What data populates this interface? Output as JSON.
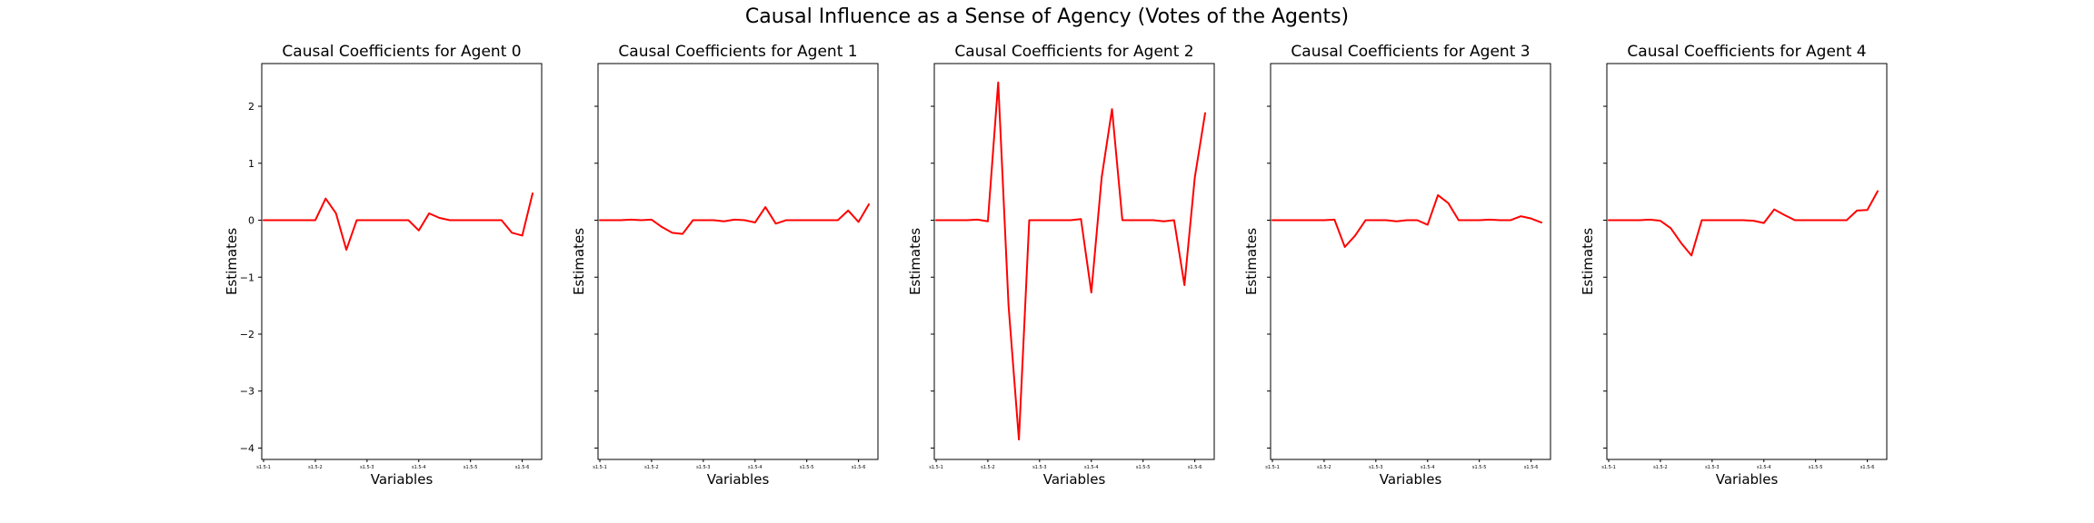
{
  "figure": {
    "title": "Causal Influence as a Sense of Agency (Votes of the Agents)"
  },
  "colors": {
    "line": "#ff0000",
    "frame": "#000000"
  },
  "chart_data": [
    {
      "type": "line",
      "title": "Causal Coefficients for Agent 0",
      "xlabel": "Variables",
      "ylabel": "Estimates",
      "ylim": [
        -4.2,
        2.75
      ],
      "yticks": [
        2,
        1,
        0,
        -1,
        -2,
        -3,
        -4
      ],
      "ytick_labels": [
        "2",
        "1",
        "0",
        "−1",
        "−2",
        "−3",
        "−4"
      ],
      "xtick_labels": [
        "s1.5-1",
        "s1.5-2",
        "s1.5-3",
        "s1.5-4",
        "s1.5-5",
        "s1.5-6"
      ],
      "xtick_positions": [
        0,
        5,
        10,
        15,
        20,
        25
      ],
      "values": [
        0,
        0,
        0,
        0,
        0,
        0,
        0.38,
        0.12,
        -0.52,
        0,
        0,
        0,
        0,
        0,
        0,
        -0.18,
        0.12,
        0.04,
        0,
        0,
        0,
        0,
        0,
        0,
        -0.22,
        -0.27,
        0.47
      ]
    },
    {
      "type": "line",
      "title": "Causal Coefficients for Agent 1",
      "xlabel": "Variables",
      "ylabel": "Estimates",
      "ylim": [
        -4.2,
        2.75
      ],
      "yticks": [
        2,
        1,
        0,
        -1,
        -2,
        -3,
        -4
      ],
      "ytick_labels": [
        "2",
        "1",
        "0",
        "−1",
        "−2",
        "−3",
        "−4"
      ],
      "xtick_labels": [
        "s1.5-1",
        "s1.5-2",
        "s1.5-3",
        "s1.5-4",
        "s1.5-5",
        "s1.5-6"
      ],
      "xtick_positions": [
        0,
        5,
        10,
        15,
        20,
        25
      ],
      "values": [
        0,
        0,
        0,
        0.01,
        0,
        0.01,
        -0.12,
        -0.22,
        -0.24,
        0,
        0,
        0,
        -0.02,
        0.01,
        0,
        -0.04,
        0.23,
        -0.06,
        0,
        0,
        0,
        0,
        0,
        0,
        0.17,
        -0.03,
        0.28
      ]
    },
    {
      "type": "line",
      "title": "Causal Coefficients for Agent 2",
      "xlabel": "Variables",
      "ylabel": "Estimates",
      "ylim": [
        -4.2,
        2.75
      ],
      "yticks": [
        2,
        1,
        0,
        -1,
        -2,
        -3,
        -4
      ],
      "ytick_labels": [
        "2",
        "1",
        "0",
        "−1",
        "−2",
        "−3",
        "−4"
      ],
      "xtick_labels": [
        "s1.5-1",
        "s1.5-2",
        "s1.5-3",
        "s1.5-4",
        "s1.5-5",
        "s1.5-6"
      ],
      "xtick_positions": [
        0,
        5,
        10,
        15,
        20,
        25
      ],
      "values": [
        0,
        0,
        0,
        0,
        0.01,
        -0.02,
        2.42,
        -1.5,
        -3.85,
        0,
        0,
        0,
        0,
        0,
        0.02,
        -1.27,
        0.75,
        1.95,
        0,
        0,
        0,
        0,
        -0.02,
        0,
        -1.14,
        0.75,
        1.88
      ]
    },
    {
      "type": "line",
      "title": "Causal Coefficients for Agent 3",
      "xlabel": "Variables",
      "ylabel": "Estimates",
      "ylim": [
        -4.2,
        2.75
      ],
      "yticks": [
        2,
        1,
        0,
        -1,
        -2,
        -3,
        -4
      ],
      "ytick_labels": [
        "2",
        "1",
        "0",
        "−1",
        "−2",
        "−3",
        "−4"
      ],
      "xtick_labels": [
        "s1.5-1",
        "s1.5-2",
        "s1.5-3",
        "s1.5-4",
        "s1.5-5",
        "s1.5-6"
      ],
      "xtick_positions": [
        0,
        5,
        10,
        15,
        20,
        25
      ],
      "values": [
        0,
        0,
        0,
        0,
        0,
        0,
        0.01,
        -0.47,
        -0.27,
        0,
        0,
        0,
        -0.02,
        0,
        0,
        -0.08,
        0.44,
        0.3,
        0,
        0,
        0,
        0.01,
        0,
        0,
        0.07,
        0.03,
        -0.04
      ]
    },
    {
      "type": "line",
      "title": "Causal Coefficients for Agent 4",
      "xlabel": "Variables",
      "ylabel": "Estimates",
      "ylim": [
        -4.2,
        2.75
      ],
      "yticks": [
        2,
        1,
        0,
        -1,
        -2,
        -3,
        -4
      ],
      "ytick_labels": [
        "2",
        "1",
        "0",
        "−1",
        "−2",
        "−3",
        "−4"
      ],
      "xtick_labels": [
        "s1.5-1",
        "s1.5-2",
        "s1.5-3",
        "s1.5-4",
        "s1.5-5",
        "s1.5-6"
      ],
      "xtick_positions": [
        0,
        5,
        10,
        15,
        20,
        25
      ],
      "values": [
        0,
        0,
        0,
        0,
        0.01,
        -0.01,
        -0.14,
        -0.4,
        -0.62,
        0,
        0,
        0,
        0,
        0,
        -0.01,
        -0.05,
        0.19,
        0.09,
        0,
        0,
        0,
        0,
        0,
        0,
        0.17,
        0.18,
        0.51
      ]
    }
  ]
}
